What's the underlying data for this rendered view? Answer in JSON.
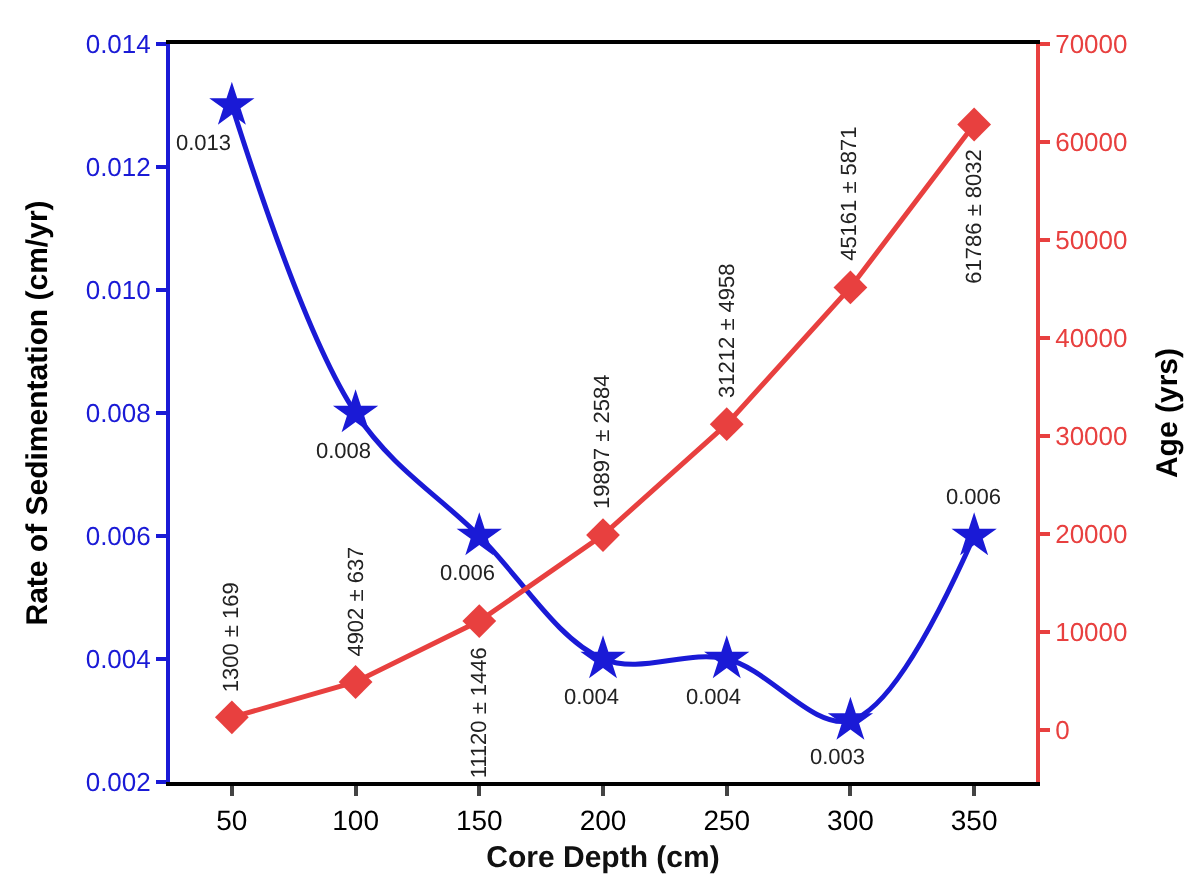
{
  "chart_data": {
    "type": "line",
    "xlabel": "Core Depth (cm)",
    "ylabel": "Rate of Sedimentation (cm/yr)",
    "y2label": "Age (yrs)",
    "x": [
      50,
      100,
      150,
      200,
      250,
      300,
      350
    ],
    "xlim": [
      25,
      375
    ],
    "xticks": [
      50,
      100,
      150,
      200,
      250,
      300,
      350
    ],
    "ylim": [
      0.002,
      0.014
    ],
    "yticks": [
      0.002,
      0.004,
      0.006,
      0.008,
      {
        "value": 0.01,
        "label": "0.010"
      },
      0.012,
      0.014
    ],
    "y2lim": [
      -5300,
      70000
    ],
    "y2ticks": [
      0,
      10000,
      20000,
      30000,
      40000,
      50000,
      60000,
      70000
    ],
    "series": [
      {
        "color": "#1a1ad6",
        "marker": "star",
        "line_style": "solid",
        "values": [
          0.013,
          0.008,
          0.006,
          0.004,
          0.004,
          0.003,
          0.006
        ],
        "value_labels": [
          "0.013",
          "0.008",
          "0.006",
          "0.004",
          "0.004",
          "0.003",
          "0.006"
        ]
      },
      {
        "color": "#e8403f",
        "marker": "diamond",
        "line_style": "solid",
        "axis": "y2",
        "values": [
          1300,
          4902,
          11120,
          19897,
          31212,
          45161,
          61786
        ],
        "value_labels": [
          "1300 ± 169",
          "4902 ± 637",
          "11120 ± 1446",
          "19897 ± 2584",
          "31212 ± 4958",
          "45161 ± 5871",
          "61786 ± 8032"
        ]
      }
    ]
  }
}
